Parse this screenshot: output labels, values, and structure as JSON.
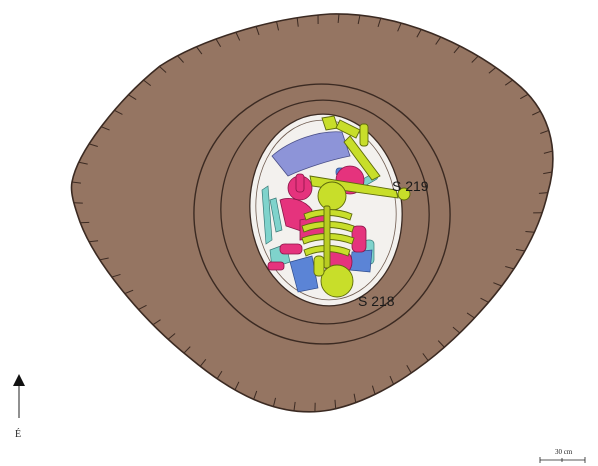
{
  "labels": {
    "burial_upper": "S 219",
    "burial_lower": "S 218"
  },
  "north_arrow": {
    "label": "É"
  },
  "scale_bar": {
    "label": "30 cm"
  },
  "colors": {
    "pit_fill": "#957562",
    "outline": "#3b2a22",
    "floor": "#f3f1ee",
    "upper_skeleton": "#c8de2a",
    "lower_skeleton": "#e5337d",
    "other_bones_cyan": "#7fd3cc",
    "slab_lavender": "#8d94d8",
    "blue_bones": "#5b84d6"
  }
}
